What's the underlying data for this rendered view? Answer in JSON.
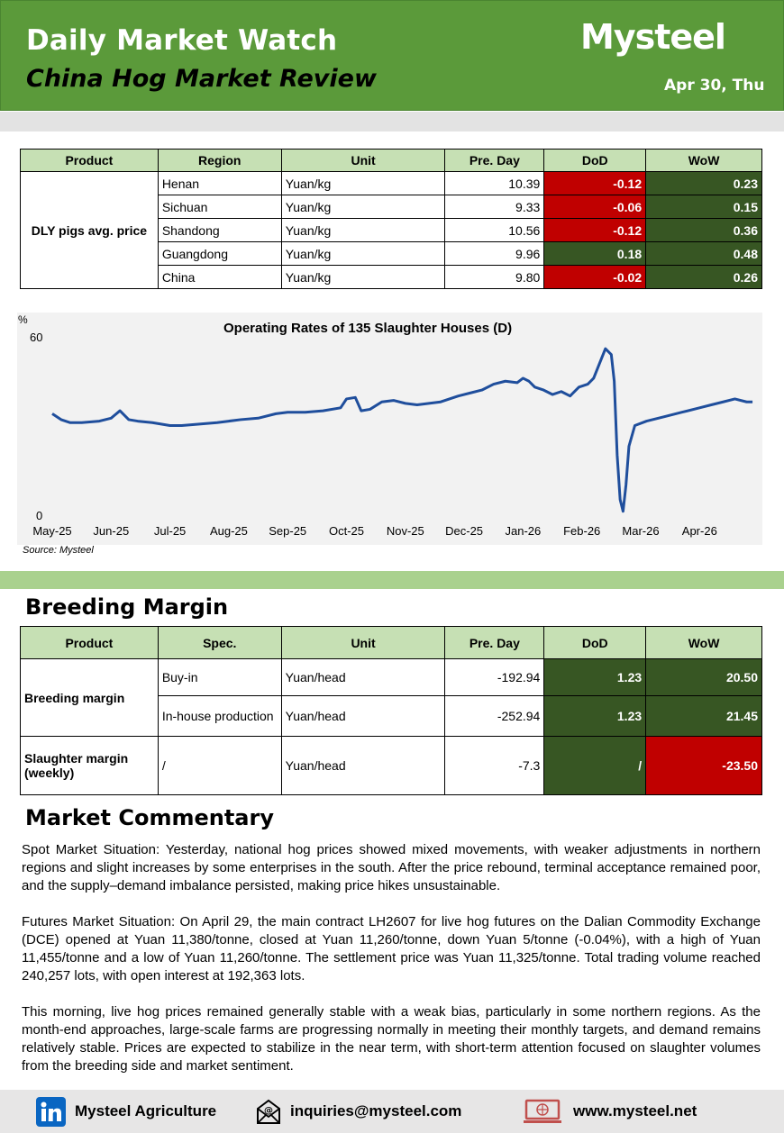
{
  "header": {
    "title": "Daily Market Watch",
    "subtitle": "China Hog Market Review",
    "logo": "Mysteel",
    "date": "Apr 30, Thu"
  },
  "price_table": {
    "headers": [
      "Product",
      "Region",
      "Unit",
      "Pre. Day",
      "DoD",
      "WoW"
    ],
    "product": "DLY pigs avg. price",
    "rows": [
      {
        "region": "Henan",
        "unit": "Yuan/kg",
        "pre": "10.39",
        "dod": "-0.12",
        "wow": "0.23"
      },
      {
        "region": "Sichuan",
        "unit": "Yuan/kg",
        "pre": "9.33",
        "dod": "-0.06",
        "wow": "0.15"
      },
      {
        "region": "Shandong",
        "unit": "Yuan/kg",
        "pre": "10.56",
        "dod": "-0.12",
        "wow": "0.36"
      },
      {
        "region": "Guangdong",
        "unit": "Yuan/kg",
        "pre": "9.96",
        "dod": "0.18",
        "wow": "0.48"
      },
      {
        "region": "China",
        "unit": "Yuan/kg",
        "pre": "9.80",
        "dod": "-0.02",
        "wow": "0.26"
      }
    ]
  },
  "chart_data": {
    "type": "line",
    "title": "Operating Rates of 135 Slaughter Houses (D)",
    "ylabel": "%",
    "ylim": [
      0,
      60
    ],
    "yticks": [
      "0",
      "60"
    ],
    "xticks": [
      "May-25",
      "Jun-25",
      "Jul-25",
      "Aug-25",
      "Sep-25",
      "Oct-25",
      "Nov-25",
      "Dec-25",
      "Jan-26",
      "Feb-26",
      "Mar-26",
      "Apr-26"
    ],
    "source": "Source: Mysteel",
    "line_color": "#1f4e9c",
    "series": [
      {
        "x": [
          0,
          0.15,
          0.3,
          0.5,
          0.8,
          1.0,
          1.15,
          1.3,
          1.45,
          1.7,
          2.0,
          2.2,
          2.5,
          2.8,
          3.0,
          3.2,
          3.5,
          3.8,
          4.0,
          4.3,
          4.6,
          4.9,
          5.0,
          5.15,
          5.25,
          5.4,
          5.6,
          5.8,
          6.0,
          6.2,
          6.4,
          6.6,
          6.9,
          7.1,
          7.3,
          7.5,
          7.7,
          7.9,
          8.0,
          8.1,
          8.2,
          8.35,
          8.5,
          8.65,
          8.8,
          8.95,
          9.1,
          9.2,
          9.3,
          9.4,
          9.5,
          9.55,
          9.6,
          9.65,
          9.7,
          9.75,
          9.8,
          9.9,
          10.1,
          10.4,
          10.7,
          11.0,
          11.2,
          11.4,
          11.6,
          11.8,
          11.9
        ],
        "values": [
          34,
          32,
          31,
          31,
          31.5,
          32.5,
          35,
          32,
          31.5,
          31,
          30,
          30,
          30.5,
          31,
          31.5,
          32,
          32.5,
          34,
          34.5,
          34.5,
          35,
          36,
          39,
          39.5,
          35,
          35.5,
          38,
          38.5,
          37.5,
          37,
          37.5,
          38,
          40,
          41,
          42,
          44,
          45,
          44.5,
          46,
          45,
          43,
          42,
          40.5,
          41.5,
          40,
          43,
          44,
          46,
          51,
          56,
          54,
          45,
          20,
          5,
          1,
          10,
          23,
          30,
          31.5,
          33,
          34.5,
          36,
          37,
          38,
          39,
          38,
          38
        ]
      }
    ]
  },
  "breeding": {
    "title": "Breeding Margin",
    "headers": [
      "Product",
      "Spec.",
      "Unit",
      "Pre. Day",
      "DoD",
      "WoW"
    ],
    "product1": "Breeding margin",
    "rows": [
      {
        "spec": "Buy-in",
        "unit": "Yuan/head",
        "pre": "-192.94",
        "dod": "1.23",
        "wow": "20.50"
      },
      {
        "spec": "In-house production",
        "unit": "Yuan/head",
        "pre": "-252.94",
        "dod": "1.23",
        "wow": "21.45"
      }
    ],
    "slaughter": {
      "product": "Slaughter margin (weekly)",
      "spec": "/",
      "unit": "Yuan/head",
      "pre": "-7.3",
      "dod": "/",
      "wow": "-23.50"
    }
  },
  "commentary": {
    "title": "Market Commentary",
    "p1": "Spot Market Situation: Yesterday, national hog prices showed mixed movements, with weaker adjustments in northern regions and slight increases by some enterprises in the south. After the price rebound, terminal acceptance remained poor, and the supply–demand imbalance persisted, making price hikes unsustainable.",
    "p2": "Futures Market Situation: On April 29, the main contract LH2607 for live hog futures on the Dalian Commodity Exchange (DCE) opened at Yuan 11,380/tonne, closed at Yuan 11,260/tonne, down Yuan 5/tonne (-0.04%), with a high of Yuan 11,455/tonne and a low of Yuan 11,260/tonne. The settlement price was Yuan 11,325/tonne. Total trading volume reached 240,257 lots, with open interest at 192,363 lots.",
    "p3": "This morning, live hog prices remained generally stable with a weak bias, particularly in some northern regions. As the month-end approaches, large-scale farms are progressing normally in meeting their monthly targets, and demand remains relatively stable. Prices are expected to stabilize in the near term, with short-term attention focused on slaughter volumes from the breeding side and market sentiment."
  },
  "footer": {
    "linkedin": "Mysteel Agriculture",
    "email": "inquiries@mysteel.com",
    "web": "www.mysteel.net",
    "linkedin_icon_color": "#0a66c2",
    "web_icon_color": "#c0504d"
  }
}
